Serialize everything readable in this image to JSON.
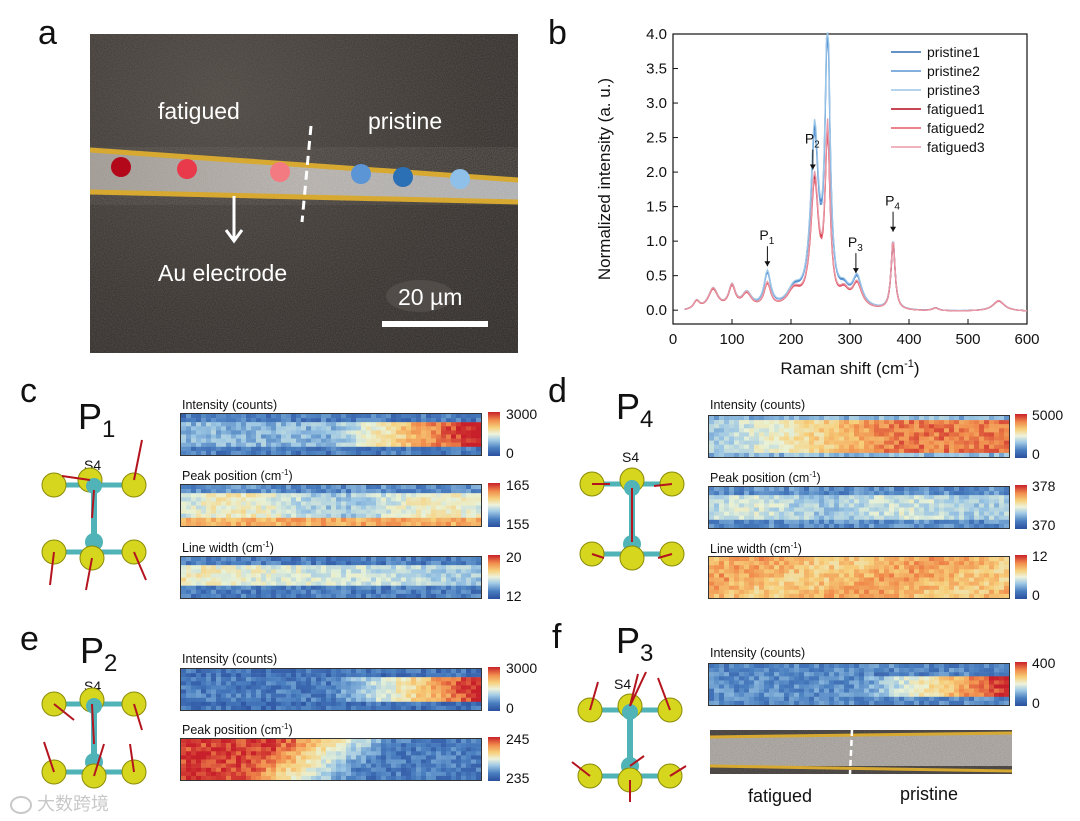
{
  "panels": {
    "a": "a",
    "b": "b",
    "c": "c",
    "d": "d",
    "e": "e",
    "f": "f"
  },
  "micrograph": {
    "fatigued_label": "fatigued",
    "pristine_label": "pristine",
    "electrode_label": "Au electrode",
    "scale_bar": "20 µm",
    "dot_colors": [
      "#b3081a",
      "#e83a4a",
      "#f27a80",
      "#5b95d6",
      "#2b6fb5",
      "#8ec0ea"
    ]
  },
  "chart_data": {
    "type": "line",
    "xlabel_main": "Raman shift (cm",
    "xlabel_sup": "-1",
    "xlabel_end": ")",
    "ylabel": "Normalized intensity (a. u.)",
    "xlim": [
      0,
      600
    ],
    "ylim": [
      -0.2,
      4.0
    ],
    "x_ticks": [
      "0",
      "100",
      "200",
      "300",
      "400",
      "500",
      "600"
    ],
    "y_ticks": [
      "0.0",
      "0.5",
      "1.0",
      "1.5",
      "2.0",
      "2.5",
      "3.0",
      "3.5",
      "4.0"
    ],
    "legend": [
      {
        "name": "pristine1",
        "color": "#2f6fb5"
      },
      {
        "name": "pristine2",
        "color": "#5b95d6"
      },
      {
        "name": "pristine3",
        "color": "#9cc6e8"
      },
      {
        "name": "fatigued1",
        "color": "#b3081a"
      },
      {
        "name": "fatigued2",
        "color": "#e35a67"
      },
      {
        "name": "fatigued3",
        "color": "#e89aa8"
      }
    ],
    "peaks": [
      {
        "label": "P",
        "sub": "1",
        "x": 160,
        "y": 0.55
      },
      {
        "label": "P",
        "sub": "2",
        "x": 237,
        "y": 1.95
      },
      {
        "label": "P",
        "sub": "3",
        "x": 310,
        "y": 0.45
      },
      {
        "label": "P",
        "sub": "4",
        "x": 373,
        "y": 1.05
      }
    ],
    "pristine_peak_heights": {
      "P1": 0.5,
      "P2": 2.45,
      "main_263": 4.0,
      "P3": 0.42,
      "P4": 1.0
    },
    "fatigued_peak_heights": {
      "P1": 0.35,
      "P2": 1.8,
      "main_263": 2.45,
      "P3": 0.35,
      "P4": 1.0
    }
  },
  "panel_c": {
    "peak": "P",
    "peak_sub": "1",
    "atom_label": "S4",
    "maps": [
      {
        "title": "Intensity (counts)",
        "max": "3000",
        "min": "0"
      },
      {
        "title": "Peak position (cm",
        "title_sup": "-1",
        "title_end": ")",
        "max": "165",
        "min": "155"
      },
      {
        "title": "Line width (cm",
        "title_sup": "-1",
        "title_end": ")",
        "max": "20",
        "min": "12"
      }
    ]
  },
  "panel_d": {
    "peak": "P",
    "peak_sub": "4",
    "atom_label": "S4",
    "maps": [
      {
        "title": "Intensity (counts)",
        "max": "5000",
        "min": "0"
      },
      {
        "title": "Peak position (cm",
        "title_sup": "-1",
        "title_end": ")",
        "max": "378",
        "min": "370"
      },
      {
        "title": "Line width (cm",
        "title_sup": "-1",
        "title_end": ")",
        "max": "12",
        "min": "0"
      }
    ]
  },
  "panel_e": {
    "peak": "P",
    "peak_sub": "2",
    "atom_label": "S4",
    "maps": [
      {
        "title": "Intensity (counts)",
        "max": "3000",
        "min": "0"
      },
      {
        "title": "Peak position (cm",
        "title_sup": "-1",
        "title_end": ")",
        "max": "245",
        "min": "235"
      }
    ]
  },
  "panel_f": {
    "peak": "P",
    "peak_sub": "3",
    "atom_label": "S4",
    "maps": [
      {
        "title": "Intensity (counts)",
        "max": "400",
        "min": "0"
      }
    ],
    "fatigued_label": "fatigued",
    "pristine_label": "pristine"
  },
  "colors": {
    "colormap": [
      "#2b4f9e",
      "#4a7fc0",
      "#9dc7e4",
      "#e9f2d6",
      "#f7cf7a",
      "#f08a4b",
      "#c8202a"
    ],
    "gold_border": "#d8a930",
    "atom_s": "#d6d61e",
    "atom_metal": "#4fb3b8",
    "arrow": "#b3141e"
  },
  "watermark": "大数跨境"
}
